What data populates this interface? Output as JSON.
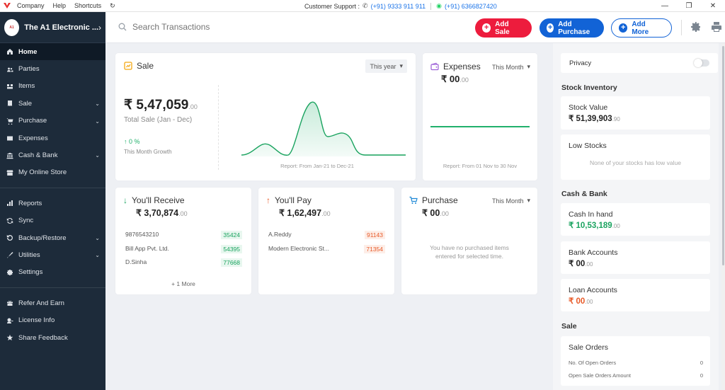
{
  "titlebar": {
    "menu": [
      "Company",
      "Help",
      "Shortcuts"
    ],
    "support_label": "Customer Support :",
    "phone": "(+91) 9333 911 911",
    "whatsapp": "(+91) 6366827420"
  },
  "sidebar": {
    "company_name": "The A1 Electronic ...",
    "avatar_text": "A1",
    "items": [
      {
        "label": "Home",
        "icon": "home-icon",
        "active": true
      },
      {
        "label": "Parties",
        "icon": "parties-icon"
      },
      {
        "label": "Items",
        "icon": "items-icon"
      },
      {
        "label": "Sale",
        "icon": "sale-icon",
        "expandable": true
      },
      {
        "label": "Purchase",
        "icon": "purchase-icon",
        "expandable": true
      },
      {
        "label": "Expenses",
        "icon": "expenses-icon"
      },
      {
        "label": "Cash & Bank",
        "icon": "bank-icon",
        "expandable": true
      },
      {
        "label": "My Online Store",
        "icon": "store-icon"
      }
    ],
    "items2": [
      {
        "label": "Reports",
        "icon": "reports-icon"
      },
      {
        "label": "Sync",
        "icon": "sync-icon"
      },
      {
        "label": "Backup/Restore",
        "icon": "backup-icon",
        "expandable": true
      },
      {
        "label": "Utilities",
        "icon": "utilities-icon",
        "expandable": true
      },
      {
        "label": "Settings",
        "icon": "settings-icon"
      }
    ],
    "items3": [
      {
        "label": "Refer And Earn",
        "icon": "gift-icon"
      },
      {
        "label": "License Info",
        "icon": "license-icon"
      },
      {
        "label": "Share Feedback",
        "icon": "star-icon"
      }
    ]
  },
  "header": {
    "search_placeholder": "Search Transactions",
    "add_sale": "Add Sale",
    "add_purchase": "Add Purchase",
    "add_more": "Add More"
  },
  "sale": {
    "title": "Sale",
    "period": "This year",
    "amount": "₹ 5,47,059",
    "amount_dec": ".00",
    "subtitle": "Total Sale (Jan - Dec)",
    "growth": "0 %",
    "growth_label": "This Month Growth",
    "report": "Report: From Jan-21 to Dec-21"
  },
  "expenses": {
    "title": "Expenses",
    "period": "This Month",
    "amount": "₹ 00",
    "amount_dec": ".00",
    "report": "Report: From 01 Nov to 30 Nov"
  },
  "receive": {
    "title": "You'll Receive",
    "amount": "₹ 3,70,874",
    "amount_dec": ".00",
    "rows": [
      {
        "name": "9876543210",
        "value": "35424"
      },
      {
        "name": "Bill App Pvt. Ltd.",
        "value": "54395"
      },
      {
        "name": "D.Sinha",
        "value": "77668"
      }
    ],
    "more": "+ 1 More"
  },
  "pay": {
    "title": "You'll Pay",
    "amount": "₹ 1,62,497",
    "amount_dec": ".00",
    "rows": [
      {
        "name": "A.Reddy",
        "value": "91143"
      },
      {
        "name": "Modern Electronic St...",
        "value": "71354"
      }
    ]
  },
  "purchase": {
    "title": "Purchase",
    "period": "This Month",
    "amount": "₹ 00",
    "amount_dec": ".00",
    "empty": "You have no purchased items entered for selected time."
  },
  "right": {
    "privacy": "Privacy",
    "stock_inventory": "Stock Inventory",
    "stock_value_label": "Stock Value",
    "stock_value": "₹ 51,39,903",
    "stock_value_dec": ".90",
    "low_stocks_label": "Low Stocks",
    "low_stocks_empty": "None of your stocks has low value",
    "cash_bank": "Cash & Bank",
    "cash_in_hand_label": "Cash In hand",
    "cash_in_hand": "₹ 10,53,189",
    "cash_in_hand_dec": ".00",
    "bank_accounts_label": "Bank Accounts",
    "bank_accounts": "₹ 00",
    "bank_accounts_dec": ".00",
    "loan_accounts_label": "Loan Accounts",
    "loan_accounts": "₹ 00",
    "loan_accounts_dec": ".00",
    "sale_section": "Sale",
    "sale_orders_label": "Sale Orders",
    "open_orders_label": "No. Of Open Orders",
    "open_orders_value": "0",
    "open_amount_label": "Open Sale Orders Amount",
    "open_amount_value": "0"
  },
  "colors": {
    "sidebar": "#1d2b3a",
    "add_sale": "#ed1c3d",
    "add_purchase": "#1263d6",
    "green": "#1aa35f",
    "red": "#e85a28"
  }
}
